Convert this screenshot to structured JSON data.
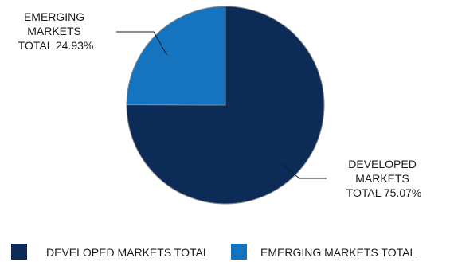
{
  "chart_data": {
    "type": "pie",
    "title": "",
    "slices": [
      {
        "name": "DEVELOPED MARKETS TOTAL",
        "value": 75.07,
        "color": "#0c2c57",
        "label_lines": [
          "DEVELOPED",
          "MARKETS",
          "TOTAL 75.07%"
        ]
      },
      {
        "name": "EMERGING MARKETS TOTAL",
        "value": 24.93,
        "color": "#1474bf",
        "label_lines": [
          "EMERGING",
          "MARKETS",
          "TOTAL 24.93%"
        ]
      }
    ],
    "legend_position": "bottom"
  }
}
